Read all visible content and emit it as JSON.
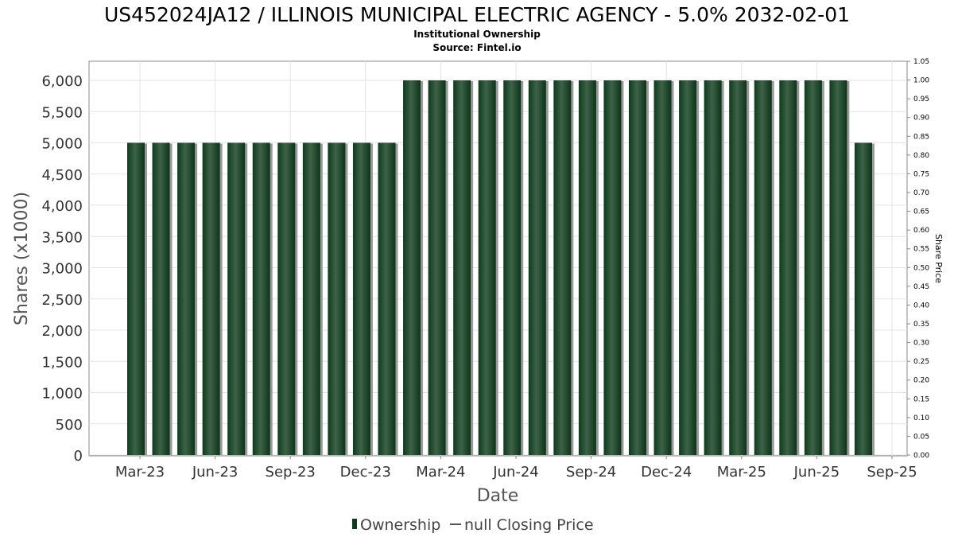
{
  "title": "US452024JA12 / ILLINOIS MUNICIPAL ELECTRIC AGENCY - 5.0% 2032-02-01",
  "subtitle": "Institutional Ownership",
  "source": "Source: Fintel.io",
  "colors": {
    "bar_dark": "#0e3b1c",
    "bar_light": "#3d6248",
    "bar_shadow": "#9a9a9a",
    "grid": "#e3e3e3",
    "axis": "#888888"
  },
  "chart_data": {
    "type": "bar",
    "title": "US452024JA12 / ILLINOIS MUNICIPAL ELECTRIC AGENCY - 5.0% 2032-02-01",
    "subtitle": "Institutional Ownership",
    "xlabel": "Date",
    "ylabel": "Shares (x1000)",
    "y2label": "Share Price",
    "ylim": [
      0,
      6000
    ],
    "y2lim": [
      0,
      1.05
    ],
    "grid": true,
    "legend_position": "bottom",
    "yticks": [
      "0",
      "500",
      "1,000",
      "1,500",
      "2,000",
      "2,500",
      "3,000",
      "3,500",
      "4,000",
      "4,500",
      "5,000",
      "5,500",
      "6,000"
    ],
    "y2ticks": [
      "0.00",
      "0.05",
      "0.10",
      "0.15",
      "0.20",
      "0.25",
      "0.30",
      "0.35",
      "0.40",
      "0.45",
      "0.50",
      "0.55",
      "0.60",
      "0.65",
      "0.70",
      "0.75",
      "0.80",
      "0.85",
      "0.90",
      "0.95",
      "1.00",
      "1.05"
    ],
    "xticks": [
      "Mar-23",
      "Jun-23",
      "Sep-23",
      "Dec-23",
      "Mar-24",
      "Jun-24",
      "Sep-24",
      "Dec-24",
      "Mar-25",
      "Jun-25",
      "Sep-25"
    ],
    "series": [
      {
        "name": "Ownership",
        "values": [
          5000,
          5000,
          5000,
          5000,
          5000,
          5000,
          5000,
          5000,
          5000,
          5000,
          5000,
          6000,
          6000,
          6000,
          6000,
          6000,
          6000,
          6000,
          6000,
          6000,
          6000,
          6000,
          6000,
          6000,
          6000,
          6000,
          6000,
          6000,
          6000,
          5000
        ]
      },
      {
        "name": "null Closing Price",
        "values": []
      }
    ]
  }
}
